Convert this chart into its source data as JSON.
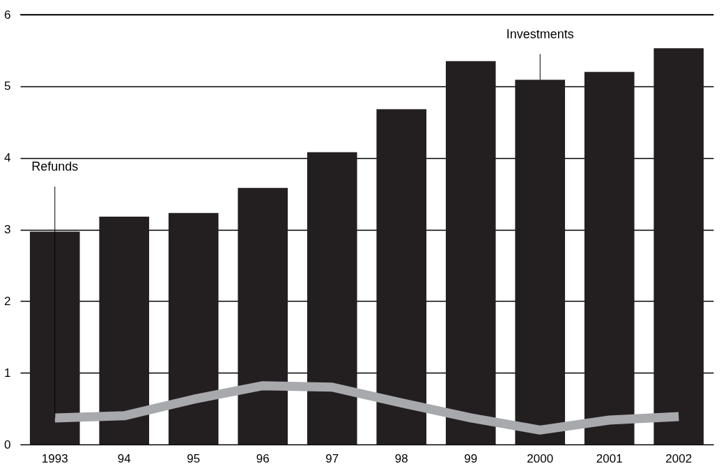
{
  "chart_data": {
    "type": "bar",
    "categories": [
      "1993",
      "94",
      "95",
      "96",
      "97",
      "98",
      "99",
      "2000",
      "2001",
      "2002"
    ],
    "series": [
      {
        "color": "#231f20",
        "values": [
          2.97,
          3.18,
          3.23,
          3.58,
          4.08,
          4.68,
          5.35,
          5.09,
          5.2,
          5.53
        ]
      },
      {
        "type": "line",
        "color": "#a7a9ac",
        "values": [
          0.37,
          0.4,
          0.63,
          0.82,
          0.8,
          0.58,
          0.37,
          0.2,
          0.34,
          0.39
        ]
      }
    ],
    "annotations": [
      {
        "text": "Investments",
        "x": "2000",
        "y": 5.09
      },
      {
        "text": "Refunds",
        "x": "1993",
        "y": 0.37
      }
    ],
    "ylim": [
      0,
      6
    ],
    "yticks": [
      0,
      1,
      2,
      3,
      4,
      5,
      6
    ],
    "grid": "y",
    "marker": "none",
    "line_style": "solid"
  }
}
